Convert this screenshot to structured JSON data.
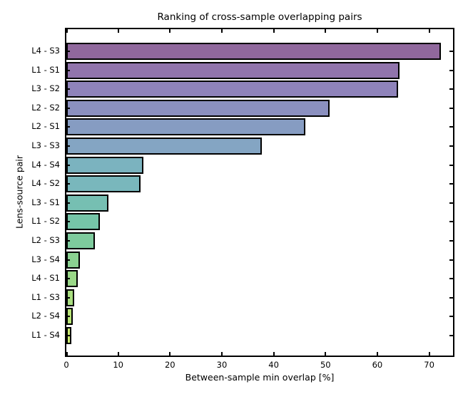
{
  "chart_data": {
    "type": "bar",
    "orientation": "horizontal",
    "title": "Ranking of cross-sample overlapping pairs",
    "xlabel": "Between-sample min overlap [%]",
    "ylabel": "Lens-source pair",
    "categories": [
      "L4 - S3",
      "L1 - S1",
      "L3 - S2",
      "L2 - S2",
      "L2 - S1",
      "L3 - S3",
      "L4 - S4",
      "L4 - S2",
      "L3 - S1",
      "L1 - S2",
      "L2 - S3",
      "L3 - S4",
      "L4 - S1",
      "L1 - S3",
      "L2 - S4",
      "L1 - S4"
    ],
    "values": [
      71.7,
      63.7,
      63.5,
      50.2,
      45.6,
      37.2,
      14.3,
      13.8,
      7.6,
      5.9,
      5.0,
      2.1,
      1.6,
      0.9,
      0.7,
      0.4
    ],
    "bar_colors": [
      "#90689D",
      "#9174AC",
      "#8F83BA",
      "#8B90BF",
      "#869CC2",
      "#84A5C3",
      "#7BB3BF",
      "#79B7BC",
      "#76BFB2",
      "#76C5A8",
      "#7ECB9D",
      "#8BD191",
      "#9AD888",
      "#A9DE80",
      "#B9E577",
      "#CCEC71"
    ],
    "bar_edge_color": "#000000",
    "xticks": [
      0,
      10,
      20,
      30,
      40,
      50,
      60,
      70
    ],
    "xlim": [
      0,
      74.6
    ],
    "grid": false,
    "legend": null,
    "background_color": "#ffffff",
    "spine_color": "#000000"
  }
}
